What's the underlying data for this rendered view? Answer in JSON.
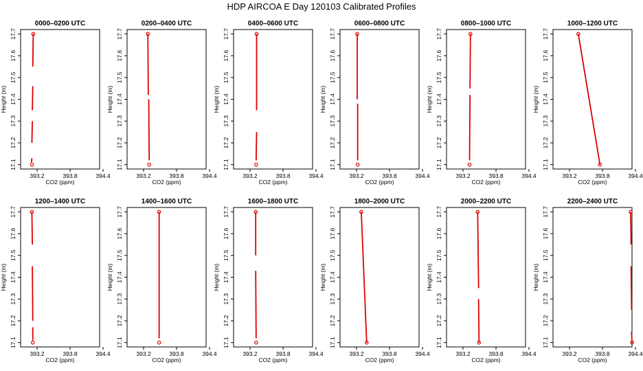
{
  "title": "HDP AIRCOA E  Day 120103  Calibrated Profiles",
  "chart_data": [
    {
      "type": "line",
      "title": "0000–0200 UTC",
      "xlabel": "CO2 (ppm)",
      "ylabel": "Height (m)",
      "xlim": [
        392.75,
        394.5
      ],
      "ylim": [
        17.08,
        17.72
      ],
      "xticks": [
        "393.2",
        "393.8",
        "394.4"
      ],
      "yticks": [
        "17.1",
        "17.2",
        "17.3",
        "17.4",
        "17.5",
        "17.6",
        "17.7"
      ],
      "points": [
        {
          "x": 393.03,
          "y": 17.7
        },
        {
          "x": 393.0,
          "y": 17.1
        }
      ],
      "segments": [
        [
          [
            393.03,
            17.7
          ],
          [
            393.02,
            17.55
          ]
        ],
        [
          [
            393.02,
            17.46
          ],
          [
            393.01,
            17.35
          ]
        ],
        [
          [
            393.01,
            17.3
          ],
          [
            393.0,
            17.2
          ]
        ],
        [
          [
            393.0,
            17.13
          ],
          [
            392.99,
            17.11
          ]
        ]
      ],
      "color": "#dd0000",
      "grid": false
    },
    {
      "type": "line",
      "title": "0200–0400 UTC",
      "xlabel": "CO2 (ppm)",
      "ylabel": "Height (m)",
      "xlim": [
        392.75,
        394.5
      ],
      "ylim": [
        17.08,
        17.72
      ],
      "xticks": [
        "393.2",
        "393.8",
        "394.4"
      ],
      "yticks": [
        "17.1",
        "17.2",
        "17.3",
        "17.4",
        "17.5",
        "17.6",
        "17.7"
      ],
      "points": [
        {
          "x": 393.21,
          "y": 17.7
        },
        {
          "x": 393.24,
          "y": 17.1
        }
      ],
      "segments": [
        [
          [
            393.21,
            17.7
          ],
          [
            393.22,
            17.42
          ]
        ],
        [
          [
            393.23,
            17.4
          ],
          [
            393.24,
            17.12
          ]
        ]
      ],
      "color": "#dd0000",
      "grid": false
    },
    {
      "type": "line",
      "title": "0400–0600 UTC",
      "xlabel": "CO2 (ppm)",
      "ylabel": "Height (m)",
      "xlim": [
        392.75,
        394.5
      ],
      "ylim": [
        17.08,
        17.72
      ],
      "xticks": [
        "393.2",
        "393.8",
        "394.4"
      ],
      "yticks": [
        "17.1",
        "17.2",
        "17.3",
        "17.4",
        "17.5",
        "17.6",
        "17.7"
      ],
      "points": [
        {
          "x": 393.26,
          "y": 17.7
        },
        {
          "x": 393.25,
          "y": 17.1
        }
      ],
      "segments": [
        [
          [
            393.26,
            17.7
          ],
          [
            393.26,
            17.35
          ]
        ],
        [
          [
            393.26,
            17.25
          ],
          [
            393.25,
            17.12
          ]
        ]
      ],
      "color": "#dd0000",
      "grid": false
    },
    {
      "type": "line",
      "title": "0600–0800 UTC",
      "xlabel": "CO2 (ppm)",
      "ylabel": "Height (m)",
      "xlim": [
        392.75,
        394.5
      ],
      "ylim": [
        17.08,
        17.72
      ],
      "xticks": [
        "393.2",
        "393.8",
        "394.4"
      ],
      "yticks": [
        "17.1",
        "17.2",
        "17.3",
        "17.4",
        "17.5",
        "17.6",
        "17.7"
      ],
      "points": [
        {
          "x": 393.13,
          "y": 17.7
        },
        {
          "x": 393.14,
          "y": 17.1
        }
      ],
      "segments": [
        [
          [
            393.13,
            17.7
          ],
          [
            393.13,
            17.4
          ]
        ],
        [
          [
            393.14,
            17.38
          ],
          [
            393.14,
            17.12
          ]
        ]
      ],
      "color": "#dd0000",
      "grid": false
    },
    {
      "type": "line",
      "title": "0800–1000 UTC",
      "xlabel": "CO2 (ppm)",
      "ylabel": "Height (m)",
      "xlim": [
        392.75,
        394.5
      ],
      "ylim": [
        17.08,
        17.72
      ],
      "xticks": [
        "393.2",
        "393.8",
        "394.4"
      ],
      "yticks": [
        "17.1",
        "17.2",
        "17.3",
        "17.4",
        "17.5",
        "17.6",
        "17.7"
      ],
      "points": [
        {
          "x": 393.28,
          "y": 17.7
        },
        {
          "x": 393.26,
          "y": 17.1
        }
      ],
      "segments": [
        [
          [
            393.28,
            17.7
          ],
          [
            393.27,
            17.45
          ]
        ],
        [
          [
            393.27,
            17.42
          ],
          [
            393.26,
            17.12
          ]
        ]
      ],
      "color": "#dd0000",
      "grid": false
    },
    {
      "type": "line",
      "title": "1000–1200 UTC",
      "xlabel": "CO2 (ppm)",
      "ylabel": "Height (m)",
      "xlim": [
        392.75,
        394.5
      ],
      "ylim": [
        17.08,
        17.72
      ],
      "xticks": [
        "393.2",
        "393.8",
        "394.4"
      ],
      "yticks": [
        "17.1",
        "17.2",
        "17.3",
        "17.4",
        "17.5",
        "17.6",
        "17.7"
      ],
      "points": [
        {
          "x": 393.31,
          "y": 17.7
        },
        {
          "x": 393.79,
          "y": 17.1
        }
      ],
      "segments": [
        [
          [
            393.31,
            17.7
          ],
          [
            393.79,
            17.1
          ]
        ]
      ],
      "color": "#dd0000",
      "grid": false
    },
    {
      "type": "line",
      "title": "1200–1400 UTC",
      "xlabel": "CO2 (ppm)",
      "ylabel": "Height (m)",
      "xlim": [
        392.75,
        394.5
      ],
      "ylim": [
        17.08,
        17.72
      ],
      "xticks": [
        "393.2",
        "393.8",
        "394.4"
      ],
      "yticks": [
        "17.1",
        "17.2",
        "17.3",
        "17.4",
        "17.5",
        "17.6",
        "17.7"
      ],
      "points": [
        {
          "x": 393.0,
          "y": 17.7
        },
        {
          "x": 393.02,
          "y": 17.1
        }
      ],
      "segments": [
        [
          [
            393.0,
            17.7
          ],
          [
            393.01,
            17.55
          ]
        ],
        [
          [
            393.01,
            17.45
          ],
          [
            393.02,
            17.2
          ]
        ],
        [
          [
            393.02,
            17.17
          ],
          [
            393.02,
            17.11
          ]
        ]
      ],
      "color": "#dd0000",
      "grid": false
    },
    {
      "type": "line",
      "title": "1400–1600 UTC",
      "xlabel": "CO2 (ppm)",
      "ylabel": "Height (m)",
      "xlim": [
        392.75,
        394.5
      ],
      "ylim": [
        17.08,
        17.72
      ],
      "xticks": [
        "393.2",
        "393.8",
        "394.4"
      ],
      "yticks": [
        "17.1",
        "17.2",
        "17.3",
        "17.4",
        "17.5",
        "17.6",
        "17.7"
      ],
      "points": [
        {
          "x": 393.46,
          "y": 17.7
        },
        {
          "x": 393.46,
          "y": 17.1
        }
      ],
      "segments": [
        [
          [
            393.46,
            17.7
          ],
          [
            393.46,
            17.12
          ]
        ]
      ],
      "color": "#dd0000",
      "grid": false
    },
    {
      "type": "line",
      "title": "1600–1800 UTC",
      "xlabel": "CO2 (ppm)",
      "ylabel": "Height (m)",
      "xlim": [
        392.75,
        394.5
      ],
      "ylim": [
        17.08,
        17.72
      ],
      "xticks": [
        "393.2",
        "393.8",
        "394.4"
      ],
      "yticks": [
        "17.1",
        "17.2",
        "17.3",
        "17.4",
        "17.5",
        "17.6",
        "17.7"
      ],
      "points": [
        {
          "x": 393.24,
          "y": 17.7
        },
        {
          "x": 393.25,
          "y": 17.1
        }
      ],
      "segments": [
        [
          [
            393.24,
            17.7
          ],
          [
            393.24,
            17.5
          ]
        ],
        [
          [
            393.24,
            17.43
          ],
          [
            393.25,
            17.12
          ]
        ]
      ],
      "color": "#dd0000",
      "grid": false
    },
    {
      "type": "line",
      "title": "1800–2000 UTC",
      "xlabel": "CO2 (ppm)",
      "ylabel": "Height (m)",
      "xlim": [
        392.75,
        394.5
      ],
      "ylim": [
        17.08,
        17.72
      ],
      "xticks": [
        "393.2",
        "393.8",
        "394.4"
      ],
      "yticks": [
        "17.1",
        "17.2",
        "17.3",
        "17.4",
        "17.5",
        "17.6",
        "17.7"
      ],
      "points": [
        {
          "x": 393.22,
          "y": 17.7
        },
        {
          "x": 393.34,
          "y": 17.1
        }
      ],
      "segments": [
        [
          [
            393.22,
            17.7
          ],
          [
            393.34,
            17.1
          ]
        ]
      ],
      "color": "#dd0000",
      "grid": false
    },
    {
      "type": "line",
      "title": "2000–2200 UTC",
      "xlabel": "CO2 (ppm)",
      "ylabel": "Height (m)",
      "xlim": [
        392.75,
        394.5
      ],
      "ylim": [
        17.08,
        17.72
      ],
      "xticks": [
        "393.2",
        "393.8",
        "394.4"
      ],
      "yticks": [
        "17.1",
        "17.2",
        "17.3",
        "17.4",
        "17.5",
        "17.6",
        "17.7"
      ],
      "points": [
        {
          "x": 393.44,
          "y": 17.7
        },
        {
          "x": 393.47,
          "y": 17.1
        }
      ],
      "segments": [
        [
          [
            393.44,
            17.7
          ],
          [
            393.46,
            17.35
          ]
        ],
        [
          [
            393.46,
            17.3
          ],
          [
            393.47,
            17.1
          ]
        ]
      ],
      "color": "#dd0000",
      "grid": false
    },
    {
      "type": "line",
      "title": "2200–2400 UTC",
      "xlabel": "CO2 (ppm)",
      "ylabel": "Height (m)",
      "xlim": [
        392.75,
        394.5
      ],
      "ylim": [
        17.08,
        17.72
      ],
      "xticks": [
        "393.2",
        "393.8",
        "394.4"
      ],
      "yticks": [
        "17.1",
        "17.2",
        "17.3",
        "17.4",
        "17.5",
        "17.6",
        "17.7"
      ],
      "points": [
        {
          "x": 394.47,
          "y": 17.7
        },
        {
          "x": 394.5,
          "y": 17.1
        }
      ],
      "segments": [
        [
          [
            394.47,
            17.7
          ],
          [
            394.48,
            17.55
          ]
        ],
        [
          [
            394.48,
            17.45
          ],
          [
            394.49,
            17.25
          ]
        ],
        [
          [
            394.49,
            17.15
          ],
          [
            394.5,
            17.1
          ]
        ]
      ],
      "color": "#dd0000",
      "grid": false
    }
  ]
}
